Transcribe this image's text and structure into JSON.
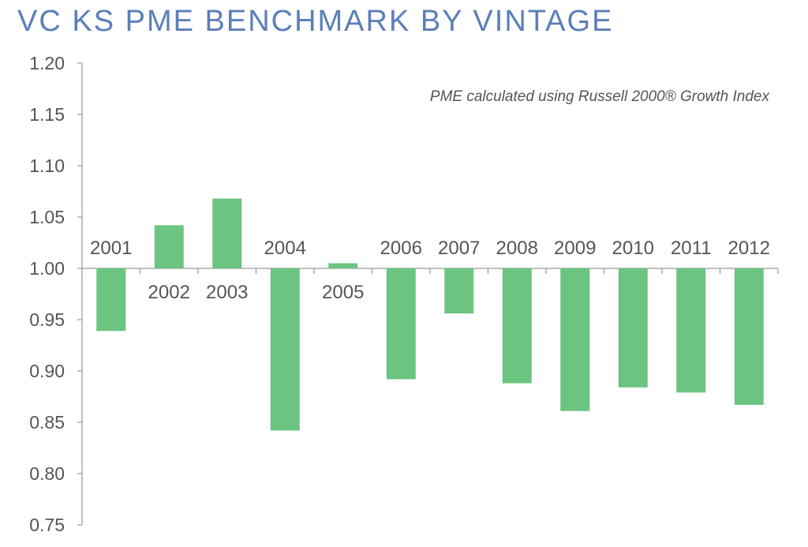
{
  "title": "VC KS PME BENCHMARK BY VINTAGE",
  "colors": {
    "title": "#5b7fb8",
    "bar": "#6bc47f",
    "axis": "#9a9a9a",
    "text": "#555555"
  },
  "chart_data": {
    "type": "bar",
    "title": "VC KS PME BENCHMARK BY VINTAGE",
    "annotation": "PME calculated using Russell 2000® Growth Index",
    "xlabel": "",
    "ylabel": "",
    "baseline": 1.0,
    "ylim": [
      0.75,
      1.2
    ],
    "yticks": [
      "0.75",
      "0.80",
      "0.85",
      "0.90",
      "0.95",
      "1.00",
      "1.05",
      "1.10",
      "1.15",
      "1.20"
    ],
    "grid": false,
    "categories": [
      "2001",
      "2002",
      "2003",
      "2004",
      "2005",
      "2006",
      "2007",
      "2008",
      "2009",
      "2010",
      "2011",
      "2012"
    ],
    "values": [
      0.939,
      1.042,
      1.068,
      0.842,
      1.005,
      0.892,
      0.956,
      0.888,
      0.861,
      0.884,
      0.879,
      0.867
    ]
  }
}
